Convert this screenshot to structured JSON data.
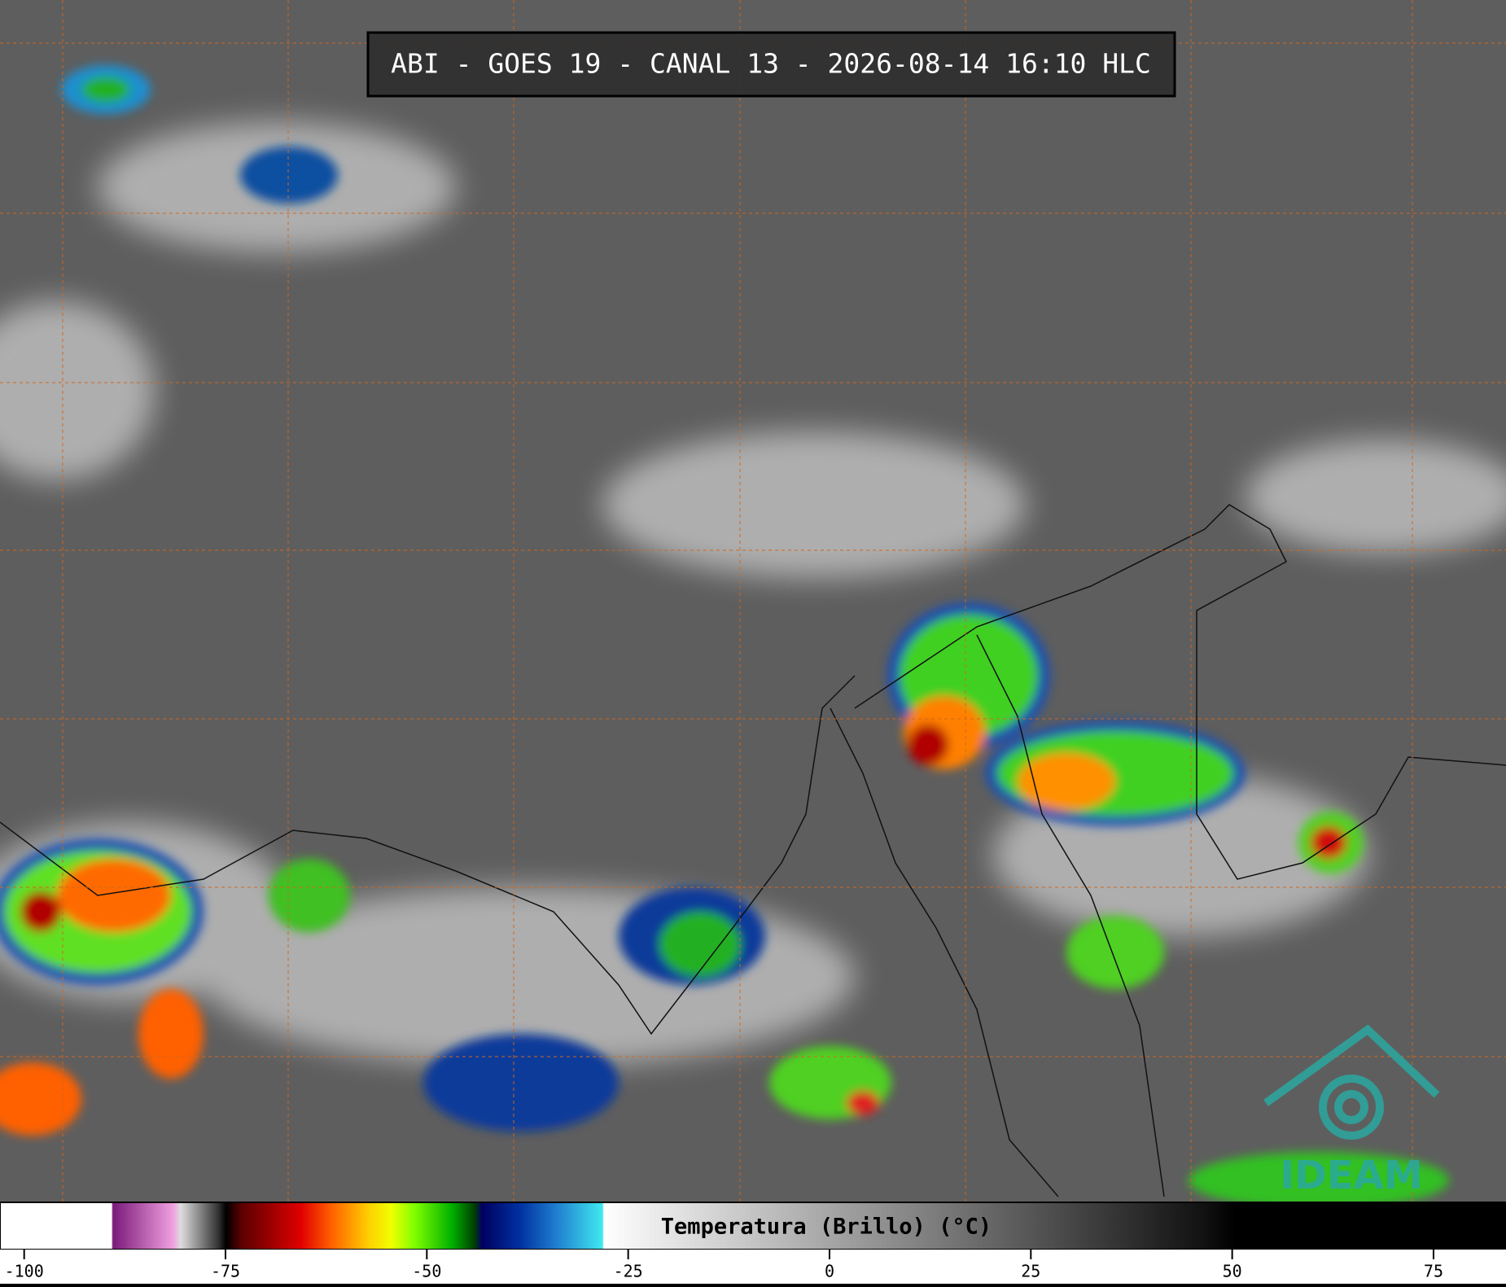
{
  "chart_data": {
    "type": "colorbar",
    "title": "ABI - GOES 19 - CANAL 13 - 2026-08-14 16:10 HLC",
    "colorbar_label": "Temperatura (Brillo) (°C)",
    "xlim": [
      -103,
      84
    ],
    "xticks": [
      -100,
      -75,
      -50,
      -25,
      0,
      25,
      50,
      75
    ],
    "logo": "IDEAM"
  }
}
